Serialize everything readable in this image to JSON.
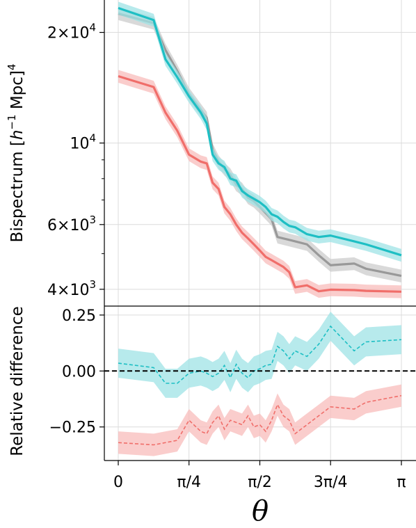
{
  "chart_data": [
    {
      "type": "line",
      "panel": "top",
      "yscale": "log",
      "ylabel_main": "Bispectrum [",
      "ylabel_h": "h",
      "ylabel_exp": "−1",
      "ylabel_mpc": " Mpc]",
      "ylabel_pow": "4",
      "ylim": [
        3600,
        24500
      ],
      "xlim": [
        -0.15,
        3.3
      ],
      "grid": true,
      "yticks": [
        {
          "value": 4000,
          "mant": "4×10",
          "exp": "3"
        },
        {
          "value": 6000,
          "mant": "6×10",
          "exp": "3"
        },
        {
          "value": 10000,
          "mant": "10",
          "exp": "4"
        },
        {
          "value": 20000,
          "mant": "2×10",
          "exp": "4"
        }
      ],
      "x": [
        0,
        0.393,
        0.524,
        0.655,
        0.785,
        0.916,
        0.982,
        1.047,
        1.113,
        1.178,
        1.244,
        1.309,
        1.374,
        1.44,
        1.505,
        1.571,
        1.636,
        1.702,
        1.767,
        1.833,
        1.898,
        1.963,
        2.094,
        2.225,
        2.356,
        2.618,
        2.749,
        3.142
      ],
      "series": [
        {
          "color": "#999999",
          "band": "#cccccc",
          "values": [
            22500,
            21200,
            17900,
            15700,
            13600,
            12300,
            11700,
            9600,
            8900,
            8500,
            8200,
            7700,
            7500,
            7100,
            6950,
            6700,
            6450,
            6200,
            5550,
            5500,
            5450,
            5400,
            5300,
            4950,
            4650,
            4700,
            4550,
            4350
          ],
          "err": 0.04
        },
        {
          "color": "#1ebfc4",
          "band": "#9fe3e6",
          "values": [
            23300,
            21600,
            16900,
            15100,
            13400,
            12100,
            11300,
            9300,
            8800,
            8600,
            8000,
            7900,
            7400,
            7200,
            7050,
            6900,
            6700,
            6400,
            6300,
            6100,
            5950,
            5900,
            5650,
            5550,
            5600,
            5400,
            5300,
            4950
          ],
          "err": 0.04
        },
        {
          "color": "#f06e6a",
          "band": "#f8bcbb",
          "values": [
            15200,
            14200,
            12100,
            10800,
            9300,
            8900,
            8800,
            7800,
            7500,
            6700,
            6400,
            6000,
            5700,
            5500,
            5300,
            5100,
            4900,
            4800,
            4700,
            4600,
            4450,
            4050,
            4100,
            3950,
            3990,
            3980,
            3960,
            3940
          ],
          "err": 0.04
        }
      ]
    },
    {
      "type": "line",
      "panel": "bottom",
      "ylabel": "Relative difference",
      "xlabel": "θ",
      "ylim": [
        -0.4,
        0.29
      ],
      "grid": true,
      "yticks": [
        {
          "value": 0.25,
          "label": "0.25"
        },
        {
          "value": 0.0,
          "label": "0.00"
        },
        {
          "value": -0.25,
          "label": "−0.25"
        }
      ],
      "xticks": [
        {
          "value": 0,
          "label": "0"
        },
        {
          "value": 0.785,
          "label": "π/4"
        },
        {
          "value": 1.571,
          "label": "π/2"
        },
        {
          "value": 2.356,
          "label": "3π/4"
        },
        {
          "value": 3.142,
          "label": "π"
        }
      ],
      "zero_line": true,
      "x": [
        0,
        0.393,
        0.524,
        0.655,
        0.785,
        0.916,
        0.982,
        1.047,
        1.113,
        1.178,
        1.244,
        1.309,
        1.374,
        1.44,
        1.505,
        1.571,
        1.636,
        1.702,
        1.767,
        1.833,
        1.898,
        1.963,
        2.094,
        2.225,
        2.356,
        2.618,
        2.749,
        3.142
      ],
      "series": [
        {
          "color": "#1ebfc4",
          "band": "#9fe3e6",
          "values": [
            0.035,
            0.015,
            -0.055,
            -0.055,
            -0.01,
            0.0,
            -0.01,
            -0.025,
            -0.01,
            0.025,
            -0.03,
            0.03,
            -0.01,
            -0.03,
            0.0,
            0.01,
            0.025,
            0.03,
            0.11,
            0.09,
            0.055,
            0.09,
            0.065,
            0.12,
            0.2,
            0.09,
            0.13,
            0.14
          ],
          "err": 0.065
        },
        {
          "color": "#f06e6a",
          "band": "#f8bcbb",
          "values": [
            -0.32,
            -0.33,
            -0.32,
            -0.31,
            -0.22,
            -0.27,
            -0.28,
            -0.23,
            -0.2,
            -0.26,
            -0.22,
            -0.23,
            -0.24,
            -0.2,
            -0.25,
            -0.24,
            -0.27,
            -0.22,
            -0.15,
            -0.2,
            -0.22,
            -0.28,
            -0.24,
            -0.2,
            -0.16,
            -0.17,
            -0.14,
            -0.11
          ],
          "err": 0.05
        }
      ]
    }
  ]
}
